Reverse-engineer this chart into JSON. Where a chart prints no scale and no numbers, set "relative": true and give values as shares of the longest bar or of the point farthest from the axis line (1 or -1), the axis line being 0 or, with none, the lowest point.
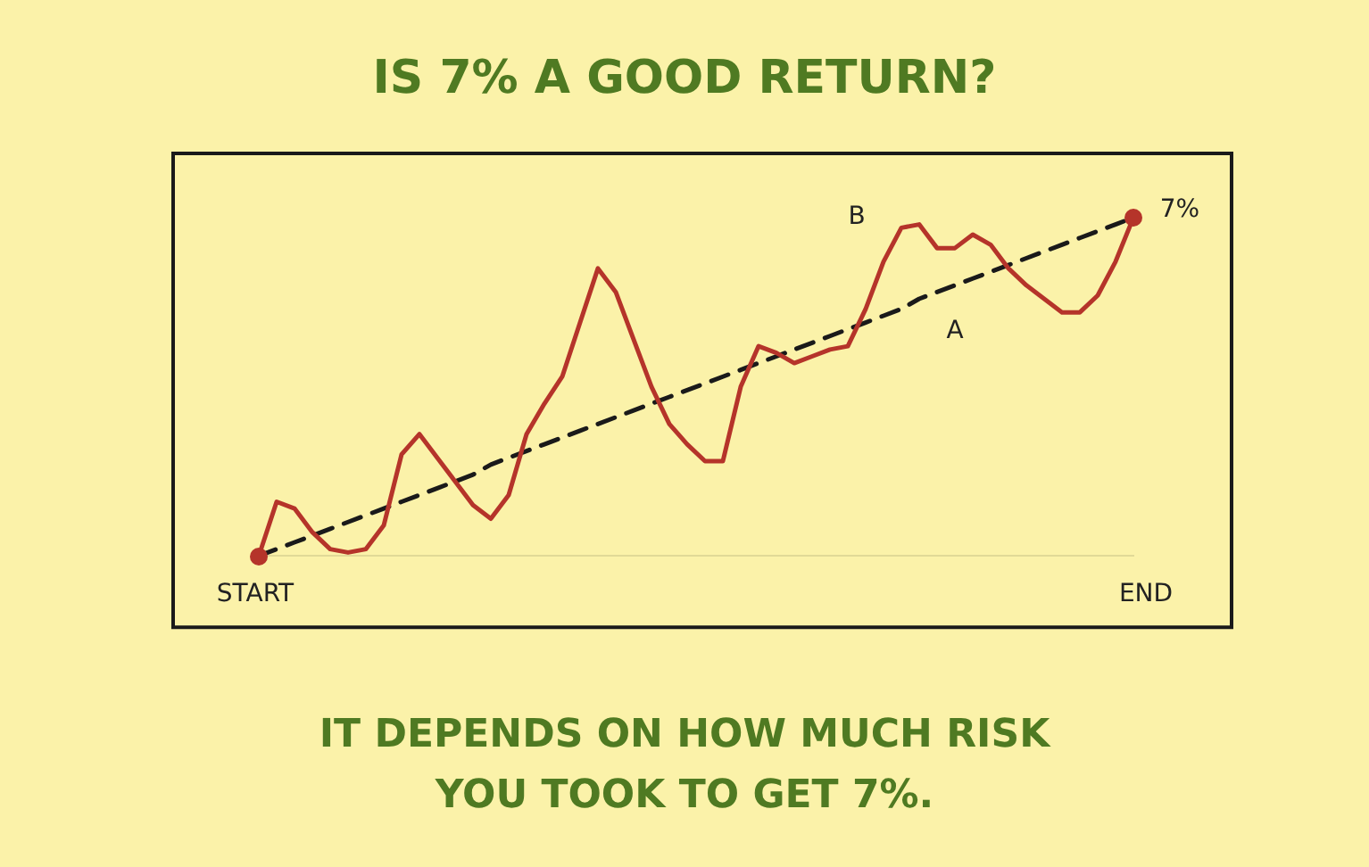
{
  "chart_data": {
    "type": "line",
    "title": "IS 7% A GOOD RETURN?",
    "relative": true,
    "categories": [
      null,
      null,
      null,
      null,
      null,
      null,
      null,
      null,
      null,
      null,
      null,
      null,
      null,
      null,
      null,
      null,
      null,
      null,
      null,
      null,
      null,
      null,
      null,
      null,
      null,
      null,
      null,
      null,
      null,
      null,
      null,
      null,
      null,
      null,
      null,
      null,
      null,
      null,
      null,
      null,
      null,
      null,
      null,
      null,
      null,
      null,
      null,
      null,
      null,
      null
    ],
    "series": [
      {
        "color": "#b5342a",
        "line_style": "solid",
        "marker": "none",
        "values": [
          0,
          0.16,
          0.14,
          0.07,
          0.02,
          0.01,
          0.02,
          0.09,
          0.3,
          0.36,
          0.29,
          0.22,
          0.15,
          0.11,
          0.18,
          0.36,
          0.45,
          0.53,
          0.69,
          0.85,
          0.78,
          0.64,
          0.5,
          0.39,
          0.33,
          0.28,
          0.28,
          0.5,
          0.62,
          0.6,
          0.57,
          0.59,
          0.61,
          0.62,
          0.73,
          0.87,
          0.97,
          0.98,
          0.91,
          0.91,
          0.95,
          0.92,
          0.85,
          0.8,
          0.76,
          0.72,
          0.72,
          0.77,
          0.87,
          1.0
        ]
      },
      {
        "color": "#1a1a1a",
        "line_style": "dashed",
        "marker": "none",
        "values": [
          0,
          0.02,
          0.04,
          0.06,
          0.08,
          0.1,
          0.12,
          0.14,
          0.16,
          0.18,
          0.2,
          0.22,
          0.24,
          0.27,
          0.29,
          0.31,
          0.33,
          0.35,
          0.37,
          0.39,
          0.41,
          0.43,
          0.45,
          0.47,
          0.49,
          0.51,
          0.53,
          0.55,
          0.57,
          0.59,
          0.61,
          0.63,
          0.65,
          0.67,
          0.69,
          0.71,
          0.73,
          0.76,
          0.78,
          0.8,
          0.82,
          0.84,
          0.86,
          0.88,
          0.9,
          0.92,
          0.94,
          0.96,
          0.98,
          1.0
        ]
      }
    ],
    "annotations": [
      "START",
      "END",
      "7%",
      "A",
      "B",
      "IT DEPENDS ON HOW MUCH RISK YOU TOOK TO GET 7%."
    ]
  }
}
